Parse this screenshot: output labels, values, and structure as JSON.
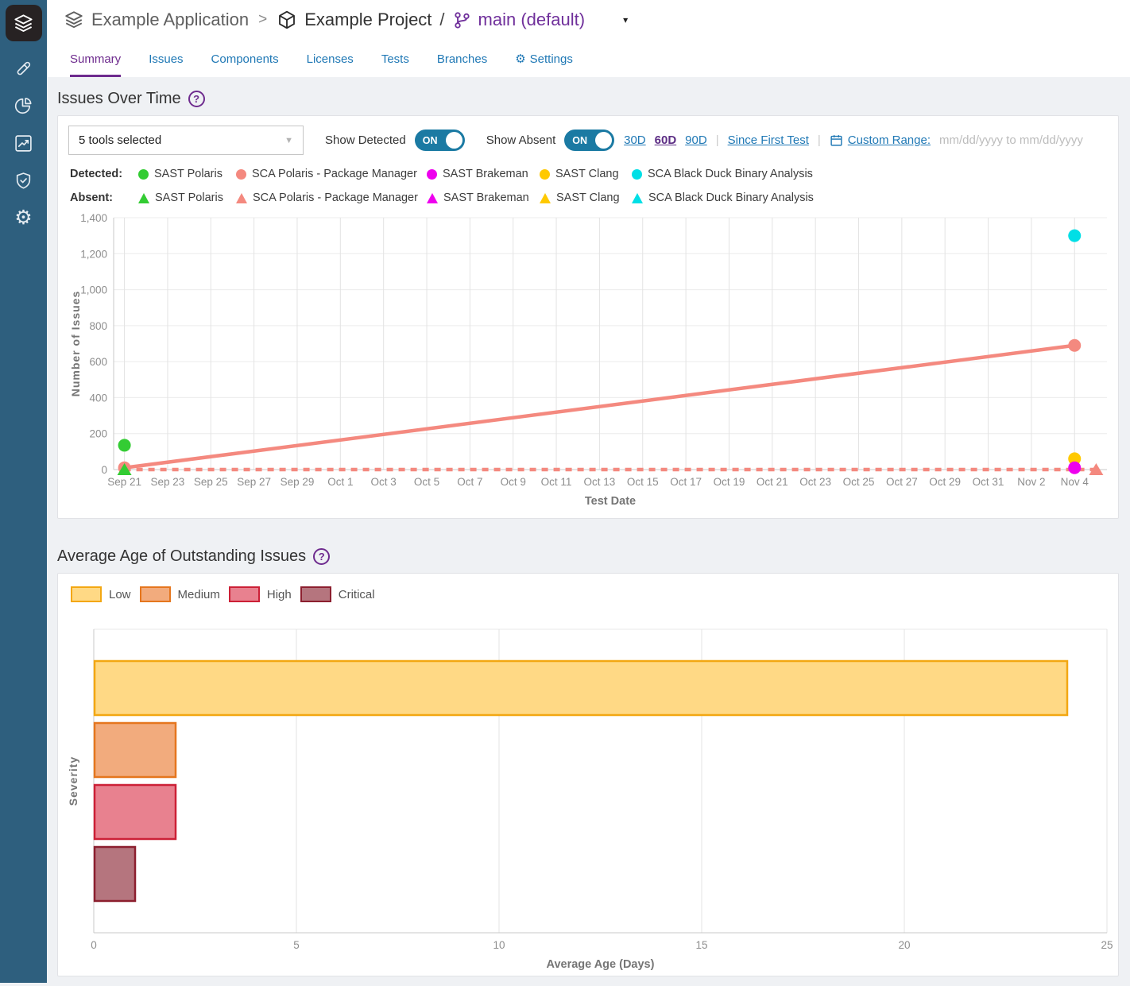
{
  "breadcrumb": {
    "application": "Example Application",
    "separator1": ">",
    "project": "Example Project",
    "separator2": "/",
    "branch": "main (default)",
    "caret": "▾"
  },
  "tabs": [
    {
      "label": "Summary",
      "active": true
    },
    {
      "label": "Issues"
    },
    {
      "label": "Components"
    },
    {
      "label": "Licenses"
    },
    {
      "label": "Tests"
    },
    {
      "label": "Branches"
    },
    {
      "label": "Settings",
      "icon": "gear"
    }
  ],
  "issues_over_time": {
    "title": "Issues Over Time",
    "help_glyph": "?",
    "tools_select_value": "5 tools selected",
    "show_detected_label": "Show Detected",
    "show_absent_label": "Show Absent",
    "toggle_on_label": "ON",
    "range_links": {
      "d30": "30D",
      "d60": "60D",
      "d90": "90D",
      "since_first_test": "Since First Test",
      "custom_range": "Custom Range:",
      "custom_placeholder": "mm/dd/yyyy to mm/dd/yyyy"
    },
    "legend": {
      "detected_label": "Detected:",
      "absent_label": "Absent:",
      "tools": [
        {
          "name": "SAST Polaris",
          "color": "#33cc33"
        },
        {
          "name": "SCA Polaris - Package Manager",
          "color": "#f4897f"
        },
        {
          "name": "SAST Brakeman",
          "color": "#ee00ee"
        },
        {
          "name": "SAST Clang",
          "color": "#ffc900"
        },
        {
          "name": "SCA Black Duck Binary Analysis",
          "color": "#00dfe6"
        }
      ]
    }
  },
  "avg_age": {
    "title": "Average Age of Outstanding Issues",
    "help_glyph": "?",
    "legend": [
      {
        "label": "Low",
        "fill": "#ffd985",
        "stroke": "#f3a712"
      },
      {
        "label": "Medium",
        "fill": "#f2ab7d",
        "stroke": "#e5761e"
      },
      {
        "label": "High",
        "fill": "#e8818f",
        "stroke": "#cc2036"
      },
      {
        "label": "Critical",
        "fill": "#b5757e",
        "stroke": "#8c1f2f"
      }
    ]
  },
  "chart_data": [
    {
      "type": "line",
      "title": "Issues Over Time",
      "xlabel": "Test Date",
      "ylabel": "Number of Issues",
      "ylim": [
        0,
        1400
      ],
      "y_ticks": [
        0,
        200,
        400,
        600,
        800,
        1000,
        1200,
        1400
      ],
      "x_tick_labels": [
        "Sep 21",
        "Sep 23",
        "Sep 25",
        "Sep 27",
        "Sep 29",
        "Oct 1",
        "Oct 3",
        "Oct 5",
        "Oct 7",
        "Oct 9",
        "Oct 11",
        "Oct 13",
        "Oct 15",
        "Oct 17",
        "Oct 19",
        "Oct 21",
        "Oct 23",
        "Oct 25",
        "Oct 27",
        "Oct 29",
        "Oct 31",
        "Nov 2",
        "Nov 4"
      ],
      "x_tick_days": [
        0,
        2,
        4,
        6,
        8,
        10,
        12,
        14,
        16,
        18,
        20,
        22,
        24,
        26,
        28,
        30,
        32,
        34,
        36,
        38,
        40,
        42,
        44
      ],
      "x_domain_days": [
        -0.5,
        45.5
      ],
      "grid": true,
      "series": [
        {
          "name": "SCA Polaris - Package Manager",
          "group": "detected",
          "marker": "circle",
          "marker_at": "all",
          "line": "solid",
          "color": "#f4897f",
          "points": [
            {
              "x_day": 0,
              "x_label": "Sep 21",
              "y": 10
            },
            {
              "x_day": 44,
              "x_label": "Nov 4",
              "y": 690
            }
          ]
        },
        {
          "name": "SAST Polaris",
          "group": "detected",
          "marker": "circle",
          "marker_at": "all",
          "color": "#33cc33",
          "points": [
            {
              "x_day": 0,
              "x_label": "Sep 21",
              "y": 135
            }
          ]
        },
        {
          "name": "SCA Black Duck Binary Analysis",
          "group": "detected",
          "marker": "circle",
          "marker_at": "all",
          "color": "#00dfe6",
          "points": [
            {
              "x_day": 44,
              "x_label": "Nov 4",
              "y": 1300
            }
          ]
        },
        {
          "name": "SAST Clang",
          "group": "detected",
          "marker": "circle",
          "marker_at": "all",
          "color": "#ffc900",
          "points": [
            {
              "x_day": 44,
              "x_label": "Nov 4",
              "y": 60
            }
          ]
        },
        {
          "name": "SAST Brakeman",
          "group": "detected",
          "marker": "circle",
          "marker_at": "all",
          "color": "#ee00ee",
          "points": [
            {
              "x_day": 44,
              "x_label": "Nov 4",
              "y": 10
            }
          ]
        },
        {
          "name": "SCA Polaris - Package Manager",
          "group": "absent",
          "marker": "triangle",
          "marker_at": "end",
          "line": "dashed",
          "color": "#f4897f",
          "points": [
            {
              "x_day": 0,
              "x_label": "Sep 21",
              "y": 0
            },
            {
              "x_day": 45,
              "x_label": "Nov 5",
              "y": 0
            }
          ]
        },
        {
          "name": "SAST Polaris",
          "group": "absent",
          "marker": "triangle",
          "marker_at": "all",
          "color": "#33cc33",
          "points": [
            {
              "x_day": 0,
              "x_label": "Sep 21",
              "y": 0
            }
          ]
        }
      ]
    },
    {
      "type": "bar",
      "orientation": "horizontal",
      "title": "Average Age of Outstanding Issues",
      "categories": [
        "Low",
        "Medium",
        "High",
        "Critical"
      ],
      "values": [
        24,
        2,
        2,
        1
      ],
      "bar_fills": [
        "#ffd985",
        "#f2ab7d",
        "#e8818f",
        "#b5757e"
      ],
      "bar_strokes": [
        "#f3a712",
        "#e5761e",
        "#cc2036",
        "#8c1f2f"
      ],
      "xlabel": "Average Age (Days)",
      "ylabel": "Severity",
      "xlim": [
        0,
        25
      ],
      "x_ticks": [
        0,
        5,
        10,
        15,
        20,
        25
      ],
      "grid": true
    }
  ]
}
